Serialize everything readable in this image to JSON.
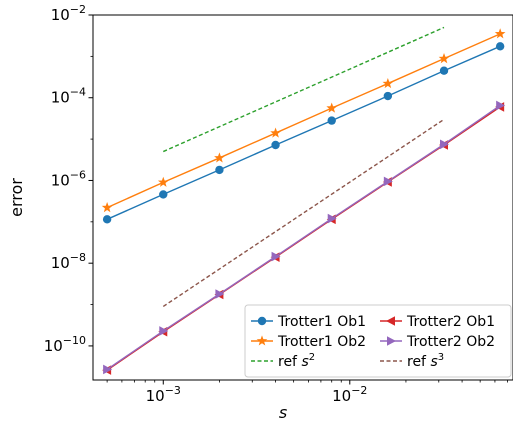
{
  "chart_data": {
    "type": "line",
    "xscale": "log",
    "yscale": "log",
    "xlabel": "s",
    "ylabel": "error",
    "xlim": [
      0.00042,
      0.075
    ],
    "ylim": [
      1.5e-11,
      0.01
    ],
    "grid": false,
    "legend_position": "lower-right",
    "x_ticks": [
      {
        "value": 0.001,
        "base": "10",
        "exp": "−3"
      },
      {
        "value": 0.01,
        "base": "10",
        "exp": "−2"
      }
    ],
    "y_ticks": [
      {
        "value": 1e-10,
        "base": "10",
        "exp": "−10"
      },
      {
        "value": 1e-08,
        "base": "10",
        "exp": "−8"
      },
      {
        "value": 1e-06,
        "base": "10",
        "exp": "−6"
      },
      {
        "value": 0.0001,
        "base": "10",
        "exp": "−4"
      },
      {
        "value": 0.01,
        "base": "10",
        "exp": "−2"
      }
    ],
    "series": [
      {
        "name": "Trotter1 Ob1",
        "color": "#1f77b4",
        "marker": "circle",
        "style": "solid",
        "x": [
          0.0005,
          0.001,
          0.002,
          0.004,
          0.008,
          0.016,
          0.032,
          0.064
        ],
        "y": [
          1.15e-07,
          4.6e-07,
          1.8e-06,
          7.2e-06,
          2.8e-05,
          0.00011,
          0.00045,
          0.00175
        ]
      },
      {
        "name": "Trotter1 Ob2",
        "color": "#ff7f0e",
        "marker": "star",
        "style": "solid",
        "x": [
          0.0005,
          0.001,
          0.002,
          0.004,
          0.008,
          0.016,
          0.032,
          0.064
        ],
        "y": [
          2.2e-07,
          9e-07,
          3.5e-06,
          1.4e-05,
          5.6e-05,
          0.00022,
          0.00088,
          0.0035
        ]
      },
      {
        "name": "ref s²",
        "color": "#2ca02c",
        "marker": "none",
        "style": "dashed",
        "x": [
          0.001,
          0.032
        ],
        "y": [
          5e-06,
          0.005
        ]
      },
      {
        "name": "Trotter2 Ob1",
        "color": "#d62728",
        "marker": "triangle-left",
        "style": "solid",
        "x": [
          0.0005,
          0.001,
          0.002,
          0.004,
          0.008,
          0.016,
          0.032,
          0.064
        ],
        "y": [
          2.6e-11,
          2.2e-10,
          1.75e-09,
          1.4e-08,
          1.15e-07,
          9.2e-07,
          7.2e-06,
          6e-05
        ]
      },
      {
        "name": "Trotter2 Ob2",
        "color": "#9467bd",
        "marker": "triangle-right",
        "style": "solid",
        "x": [
          0.0005,
          0.001,
          0.002,
          0.004,
          0.008,
          0.016,
          0.032,
          0.064
        ],
        "y": [
          2.7e-11,
          2.3e-10,
          1.8e-09,
          1.45e-08,
          1.2e-07,
          9.5e-07,
          7.5e-06,
          6.5e-05
        ]
      },
      {
        "name": "ref s³",
        "color": "#8c564b",
        "marker": "none",
        "style": "dashed",
        "x": [
          0.001,
          0.032
        ],
        "y": [
          9e-10,
          3e-05
        ]
      }
    ],
    "legend": {
      "ncol": 2,
      "entries": [
        {
          "series": 0,
          "text": "Trotter1 Ob1"
        },
        {
          "series": 1,
          "text": "Trotter1 Ob2"
        },
        {
          "series": 2,
          "text": "ref ",
          "italic": "s",
          "sup": "2"
        },
        {
          "series": 3,
          "text": "Trotter2 Ob1"
        },
        {
          "series": 4,
          "text": "Trotter2 Ob2"
        },
        {
          "series": 5,
          "text": "ref ",
          "italic": "s",
          "sup": "3"
        }
      ]
    }
  }
}
